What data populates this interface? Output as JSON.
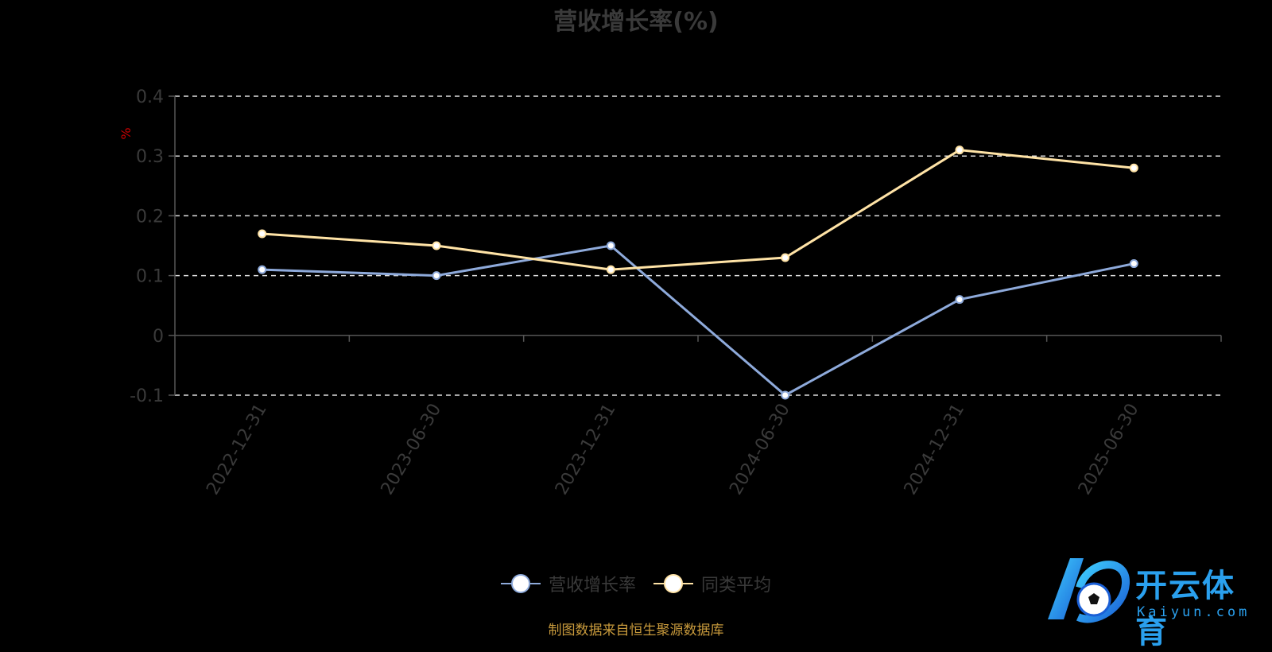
{
  "title": "营收增长率(%)",
  "source": "制图数据来自恒生聚源数据库",
  "logo": {
    "name": "开云体育",
    "domain": "Kaiyun.com"
  },
  "colors": {
    "series1": "#8eaadb",
    "series2": "#ffe3a6",
    "axis": "#555555",
    "grid": "#dddddd",
    "unit": "#cc0000"
  },
  "chart_data": {
    "type": "line",
    "x": [
      "2022-12-31",
      "2023-06-30",
      "2023-12-31",
      "2024-06-30",
      "2024-12-31",
      "2025-06-30"
    ],
    "ylabel": "%",
    "ylim": [
      -0.1,
      0.4
    ],
    "yticks": [
      "0.4",
      "0.3",
      "0.2",
      "0.1",
      "0",
      "-0.1"
    ],
    "grid": true,
    "legend_position": "bottom",
    "series": [
      {
        "name": "营收增长率",
        "values": [
          0.11,
          0.1,
          0.15,
          -0.1,
          0.06,
          0.12
        ]
      },
      {
        "name": "同类平均",
        "values": [
          0.17,
          0.15,
          0.11,
          0.13,
          0.31,
          0.28
        ]
      }
    ]
  }
}
